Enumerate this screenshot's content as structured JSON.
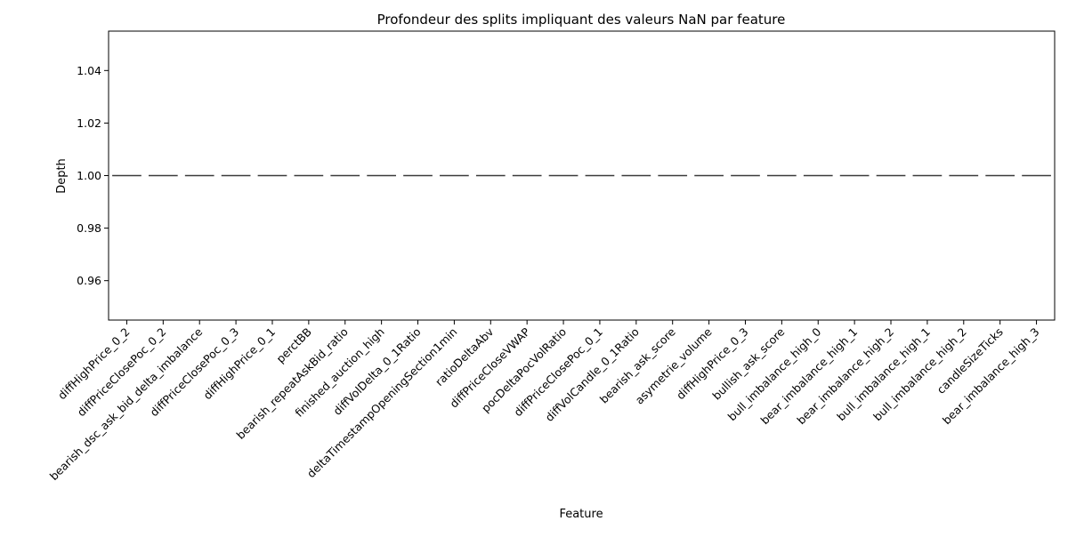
{
  "chart_data": {
    "type": "box",
    "title": "Profondeur des splits impliquant des valeurs NaN par feature",
    "xlabel": "Feature",
    "ylabel": "Depth",
    "ylim": [
      0.945,
      1.055
    ],
    "yticks": [
      0.96,
      0.98,
      1.0,
      1.02,
      1.04
    ],
    "ytick_labels": [
      "0.96",
      "0.98",
      "1.00",
      "1.02",
      "1.04"
    ],
    "grid": false,
    "legend": "none",
    "box_color": "#3a3a3a",
    "categories": [
      "diffHighPrice_0_2",
      "diffPriceClosePoc_0_2",
      "bearish_dsc_ask_bid_delta_imbalance",
      "diffPriceClosePoc_0_3",
      "diffHighPrice_0_1",
      "perctBB",
      "bearish_repeatAskBid_ratio",
      "finished_auction_high",
      "diffVolDelta_0_1Ratio",
      "deltaTimestampOpeningSection1min",
      "ratioDeltaAbv",
      "diffPriceCloseVWAP",
      "pocDeltaPocVolRatio",
      "diffPriceClosePoc_0_1",
      "diffVolCandle_0_1Ratio",
      "bearish_ask_score",
      "asymetrie_volume",
      "diffHighPrice_0_3",
      "bullish_ask_score",
      "bull_imbalance_high_0",
      "bear_imbalance_high_1",
      "bear_imbalance_high_2",
      "bull_imbalance_high_1",
      "bull_imbalance_high_2",
      "candleSizeTicks",
      "bear_imbalance_high_3"
    ],
    "values": [
      1,
      1,
      1,
      1,
      1,
      1,
      1,
      1,
      1,
      1,
      1,
      1,
      1,
      1,
      1,
      1,
      1,
      1,
      1,
      1,
      1,
      1,
      1,
      1,
      1,
      1
    ]
  }
}
